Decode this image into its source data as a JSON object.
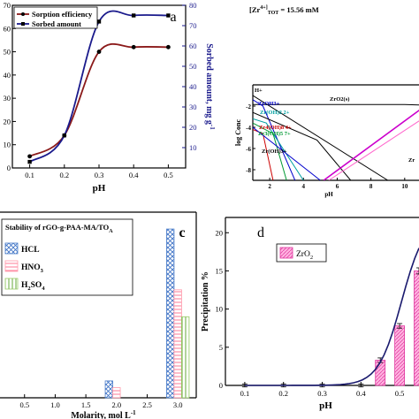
{
  "chart_data": [
    {
      "panel": "a",
      "type": "line",
      "panel_label": "a",
      "xlabel": "pH",
      "ylabel_right": "Sorbed amount, mg g",
      "ylabel_right_sup": "-1",
      "x": [
        0.1,
        0.2,
        0.3,
        0.4,
        0.5
      ],
      "xlim": [
        0.05,
        0.55
      ],
      "x_ticks": [
        "0.1",
        "0.2",
        "0.3",
        "0.4",
        "0.5"
      ],
      "ylim_left": [
        0,
        70
      ],
      "y_ticks_left": [
        "0",
        "10",
        "20",
        "30",
        "40",
        "50",
        "60",
        "70"
      ],
      "ylim_right": [
        0,
        80
      ],
      "y_ticks_right": [
        "10",
        "20",
        "30",
        "40",
        "50",
        "60",
        "70",
        "80"
      ],
      "legend": [
        "Sorption efficiency",
        "Sorbed amount"
      ],
      "series": [
        {
          "name": "Sorption efficiency",
          "axis": "left",
          "color": "#8b1a1a",
          "values": [
            5,
            14,
            50,
            52,
            52
          ]
        },
        {
          "name": "Sorbed amount",
          "axis": "right",
          "color": "#1a1a8c",
          "values": [
            3,
            16,
            72,
            75,
            75
          ]
        }
      ]
    },
    {
      "panel": "b",
      "type": "line",
      "annotation": "[Zr",
      "annotation_sup": "4+",
      "annotation_sub": "TOT",
      "annotation_rest": " =   15.56 mM",
      "xlabel": "pH",
      "ylabel": "log Conc",
      "xlim": [
        1,
        12
      ],
      "x_ticks": [
        "2",
        "4",
        "6",
        "8",
        "10"
      ],
      "ylim": [
        -9,
        0
      ],
      "y_ticks": [
        "-2",
        "-4",
        "-6",
        "-8"
      ],
      "species_labels": [
        "H+",
        "ZrOH3+",
        "Zr(OH)2 2+",
        "Zr3(OH)5 7+",
        "Zr4(OH)8 4+",
        "ZrO2(s)",
        "Zr(OH)3+",
        "Zr"
      ],
      "series": [
        {
          "name": "H+",
          "color": "#000000",
          "x": [
            1,
            9
          ],
          "values": [
            -1,
            -9
          ]
        },
        {
          "name": "ZrO2(s)",
          "color": "#000000",
          "x": [
            1,
            10,
            12
          ],
          "values": [
            -1.85,
            -1.85,
            -1.95
          ]
        },
        {
          "name": "ZrOH3+",
          "color": "#0000cc",
          "x": [
            1,
            1.6,
            3.5
          ],
          "values": [
            -1.4,
            -2.0,
            -9
          ]
        },
        {
          "name": "Zr(OH)2 2+",
          "color": "#00a0a0",
          "x": [
            1,
            1.8,
            4.0
          ],
          "values": [
            -3.2,
            -3.6,
            -9
          ]
        },
        {
          "name": "Zr3(OH)5 7+",
          "color": "#009933",
          "x": [
            1,
            2.2,
            3.0
          ],
          "values": [
            -3.6,
            -4.6,
            -9
          ]
        },
        {
          "name": "Zr4(OH)8 4+",
          "color": "#cc0000",
          "x": [
            1,
            1.6,
            2.2
          ],
          "values": [
            -4.2,
            -4.6,
            -9
          ]
        },
        {
          "name": "Zr(OH)3+",
          "color": "#000000",
          "x": [
            1,
            4.8,
            6.8
          ],
          "values": [
            -2.6,
            -5.2,
            -9
          ]
        },
        {
          "name": "Zr(OH)4 mono",
          "color": "#0000cc",
          "x": [
            1,
            5.0
          ],
          "values": [
            -4.0,
            -9
          ]
        },
        {
          "name": "Zr(OH)5-",
          "color": "#cc00cc",
          "x": [
            5.2,
            11.2,
            12
          ],
          "values": [
            -9,
            -2.0,
            -1.95
          ]
        },
        {
          "name": "OH-",
          "color": "#ff66cc",
          "x": [
            5.5,
            12
          ],
          "values": [
            -9,
            -2.2
          ]
        }
      ]
    },
    {
      "panel": "c",
      "type": "bar",
      "panel_label": "c",
      "xlabel": "Molarity, mol L",
      "xlabel_sup": "-1",
      "legend_title": "Stability of rGO-g-PAA-MA/TO",
      "legend_title_sub": "A",
      "x_ticks": [
        "0.5",
        "1.0",
        "1.5",
        "2.0",
        "2.5",
        "3.0"
      ],
      "xlim": [
        0.1,
        3.3
      ],
      "ylim": [
        0,
        110
      ],
      "series": [
        {
          "name": "HCL",
          "color": "#4a7dc9",
          "x": [
            1.0,
            2.0,
            3.0
          ],
          "values": [
            0,
            10,
            100
          ]
        },
        {
          "name": "HNO3",
          "color": "#ff99aa",
          "x": [
            1.0,
            2.0,
            3.0
          ],
          "values": [
            0,
            6,
            64
          ]
        },
        {
          "name": "H2SO4",
          "color": "#99cc66",
          "x": [
            1.0,
            2.0,
            3.0
          ],
          "values": [
            0,
            0,
            48
          ]
        }
      ],
      "legend": [
        {
          "label": "HCL",
          "sub": ""
        },
        {
          "label": "HNO",
          "sub": "3"
        },
        {
          "label": "H",
          "sub": "2",
          "rest": "SO",
          "sub2": "4"
        }
      ]
    },
    {
      "panel": "d",
      "type": "bar",
      "panel_label": "d",
      "xlabel": "pH",
      "ylabel": "Precipitation %",
      "legend": "ZrO",
      "legend_sub": "2",
      "x": [
        0.1,
        0.2,
        0.3,
        0.4,
        0.45,
        0.5,
        0.55
      ],
      "values": [
        0,
        0,
        0,
        0,
        3.3,
        7.8,
        15
      ],
      "errors": [
        0.2,
        0.2,
        0.2,
        0.2,
        0.3,
        0.3,
        0.4
      ],
      "xlim": [
        0.05,
        0.55
      ],
      "x_ticks": [
        "0.1",
        "0.2",
        "0.3",
        "0.4",
        "0.5"
      ],
      "ylim": [
        0,
        22
      ],
      "y_ticks": [
        "0",
        "5",
        "10",
        "15",
        "20"
      ],
      "bar_color": "#ff66cc",
      "fit_color": "#1a1a6e"
    }
  ]
}
